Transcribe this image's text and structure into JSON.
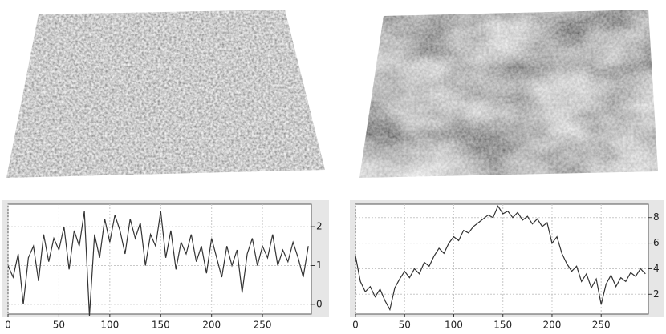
{
  "chart_data": [
    {
      "type": "line",
      "color": "#333333",
      "grid": true,
      "x": [
        0,
        5,
        10,
        15,
        20,
        25,
        30,
        35,
        40,
        45,
        50,
        55,
        60,
        65,
        70,
        75,
        80,
        85,
        90,
        95,
        100,
        105,
        110,
        115,
        120,
        125,
        130,
        135,
        140,
        145,
        150,
        155,
        160,
        165,
        170,
        175,
        180,
        185,
        190,
        195,
        200,
        205,
        210,
        215,
        220,
        225,
        230,
        235,
        240,
        245,
        250,
        255,
        260,
        265,
        270,
        275,
        280,
        285,
        290,
        295
      ],
      "values": [
        1.0,
        0.7,
        1.3,
        0.0,
        1.2,
        1.5,
        0.6,
        1.8,
        1.1,
        1.7,
        1.4,
        2.0,
        0.9,
        1.9,
        1.5,
        2.4,
        -0.3,
        1.8,
        1.2,
        2.2,
        1.6,
        2.3,
        1.9,
        1.3,
        2.2,
        1.7,
        2.1,
        1.0,
        1.8,
        1.5,
        2.4,
        1.2,
        1.9,
        0.9,
        1.6,
        1.3,
        1.8,
        1.1,
        1.5,
        0.8,
        1.7,
        1.2,
        0.7,
        1.5,
        1.0,
        1.4,
        0.3,
        1.3,
        1.7,
        1.0,
        1.5,
        1.2,
        1.8,
        1.0,
        1.4,
        1.1,
        1.6,
        1.2,
        0.7,
        1.5
      ],
      "xlim": [
        0,
        298
      ],
      "ylim": [
        -0.25,
        2.58
      ],
      "xticks": [
        0,
        50,
        100,
        150,
        200,
        250
      ],
      "yticks": [
        0,
        1,
        2
      ]
    },
    {
      "type": "line",
      "color": "#333333",
      "grid": true,
      "x": [
        0,
        5,
        10,
        15,
        20,
        25,
        30,
        35,
        40,
        45,
        50,
        55,
        60,
        65,
        70,
        75,
        80,
        85,
        90,
        95,
        100,
        105,
        110,
        115,
        120,
        125,
        130,
        135,
        140,
        145,
        150,
        155,
        160,
        165,
        170,
        175,
        180,
        185,
        190,
        195,
        200,
        205,
        210,
        215,
        220,
        225,
        230,
        235,
        240,
        245,
        250,
        255,
        260,
        265,
        270,
        275,
        280,
        285,
        290,
        295
      ],
      "values": [
        5.0,
        3.0,
        2.2,
        2.6,
        1.8,
        2.4,
        1.5,
        0.8,
        2.5,
        3.2,
        3.8,
        3.3,
        4.0,
        3.6,
        4.5,
        4.2,
        5.0,
        5.6,
        5.2,
        6.0,
        6.5,
        6.2,
        7.0,
        6.8,
        7.3,
        7.6,
        7.9,
        8.2,
        8.0,
        8.9,
        8.3,
        8.5,
        8.0,
        8.4,
        7.8,
        8.1,
        7.5,
        7.9,
        7.3,
        7.6,
        6.0,
        6.5,
        5.2,
        4.4,
        3.8,
        4.2,
        3.0,
        3.6,
        2.5,
        3.2,
        1.2,
        2.8,
        3.5,
        2.6,
        3.3,
        3.0,
        3.7,
        3.4,
        4.0,
        3.6
      ],
      "xlim": [
        0,
        298
      ],
      "ylim": [
        0.45,
        9.05
      ],
      "xticks": [
        0,
        50,
        100,
        150,
        200,
        250
      ],
      "yticks": [
        2,
        4,
        6,
        8
      ]
    }
  ]
}
